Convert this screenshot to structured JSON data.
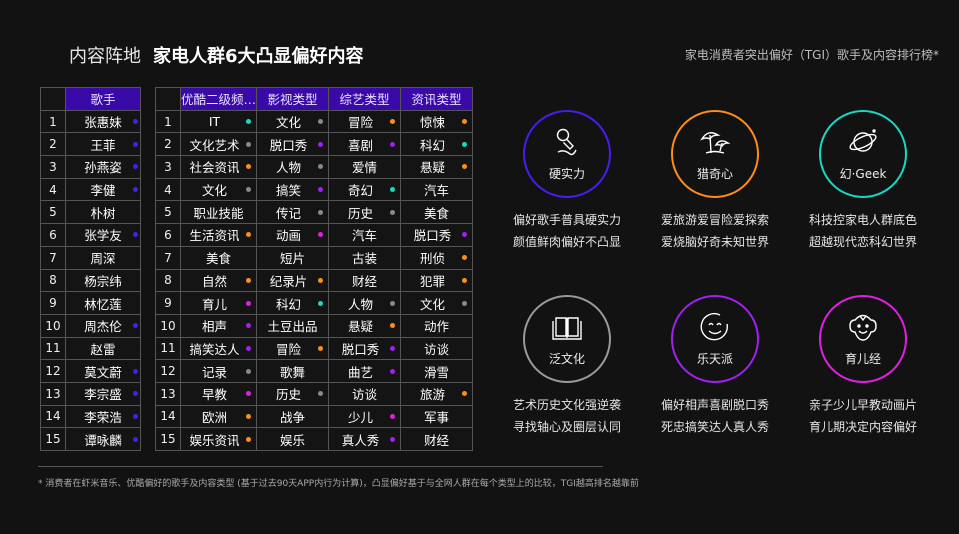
{
  "header": {
    "title_light": "内容阵地",
    "title_bold": "家电人群6大凸显偏好内容",
    "subtitle": "家电消费者突出偏好（TGI）歌手及内容排行榜*"
  },
  "colors": {
    "header_bg": "#3a0aa8",
    "blue": "#4a1cf0",
    "purple": "#a020f0",
    "magenta": "#e020e0",
    "orange": "#ff8c1a",
    "cyan": "#19d9c4",
    "gray": "#8a8a8a"
  },
  "singer_table": {
    "header": "歌手",
    "rows": [
      {
        "idx": "1",
        "name": "张惠妹",
        "dot": "blue"
      },
      {
        "idx": "2",
        "name": "王菲",
        "dot": "blue"
      },
      {
        "idx": "3",
        "name": "孙燕姿",
        "dot": "blue"
      },
      {
        "idx": "4",
        "name": "李健",
        "dot": "blue"
      },
      {
        "idx": "5",
        "name": "朴树",
        "dot": ""
      },
      {
        "idx": "6",
        "name": "张学友",
        "dot": "blue"
      },
      {
        "idx": "7",
        "name": "周深",
        "dot": ""
      },
      {
        "idx": "8",
        "name": "杨宗纬",
        "dot": ""
      },
      {
        "idx": "9",
        "name": "林忆莲",
        "dot": ""
      },
      {
        "idx": "10",
        "name": "周杰伦",
        "dot": "blue"
      },
      {
        "idx": "11",
        "name": "赵雷",
        "dot": ""
      },
      {
        "idx": "12",
        "name": "莫文蔚",
        "dot": "blue"
      },
      {
        "idx": "13",
        "name": "李宗盛",
        "dot": "blue"
      },
      {
        "idx": "14",
        "name": "李荣浩",
        "dot": "blue"
      },
      {
        "idx": "15",
        "name": "谭咏麟",
        "dot": "blue"
      }
    ]
  },
  "content_table": {
    "headers": [
      "优酷二级频…",
      "影视类型",
      "综艺类型",
      "资讯类型"
    ],
    "rows": [
      {
        "idx": "1",
        "cells": [
          {
            "t": "IT",
            "d": "cyan"
          },
          {
            "t": "文化",
            "d": "gray"
          },
          {
            "t": "冒险",
            "d": "orange"
          },
          {
            "t": "惊悚",
            "d": "orange"
          }
        ]
      },
      {
        "idx": "2",
        "cells": [
          {
            "t": "文化艺术",
            "d": "gray"
          },
          {
            "t": "脱口秀",
            "d": "purple"
          },
          {
            "t": "喜剧",
            "d": "purple"
          },
          {
            "t": "科幻",
            "d": "cyan"
          }
        ]
      },
      {
        "idx": "3",
        "cells": [
          {
            "t": "社会资讯",
            "d": "orange"
          },
          {
            "t": "人物",
            "d": "gray"
          },
          {
            "t": "爱情",
            "d": ""
          },
          {
            "t": "悬疑",
            "d": "orange"
          }
        ]
      },
      {
        "idx": "4",
        "cells": [
          {
            "t": "文化",
            "d": "gray"
          },
          {
            "t": "搞笑",
            "d": "purple"
          },
          {
            "t": "奇幻",
            "d": "cyan"
          },
          {
            "t": "汽车",
            "d": ""
          }
        ]
      },
      {
        "idx": "5",
        "cells": [
          {
            "t": "职业技能",
            "d": ""
          },
          {
            "t": "传记",
            "d": "gray"
          },
          {
            "t": "历史",
            "d": "gray"
          },
          {
            "t": "美食",
            "d": ""
          }
        ]
      },
      {
        "idx": "6",
        "cells": [
          {
            "t": "生活资讯",
            "d": "orange"
          },
          {
            "t": "动画",
            "d": "magenta"
          },
          {
            "t": "汽车",
            "d": ""
          },
          {
            "t": "脱口秀",
            "d": "purple"
          }
        ]
      },
      {
        "idx": "7",
        "cells": [
          {
            "t": "美食",
            "d": ""
          },
          {
            "t": "短片",
            "d": ""
          },
          {
            "t": "古装",
            "d": ""
          },
          {
            "t": "刑侦",
            "d": "orange"
          }
        ]
      },
      {
        "idx": "8",
        "cells": [
          {
            "t": "自然",
            "d": "orange"
          },
          {
            "t": "纪录片",
            "d": "orange"
          },
          {
            "t": "财经",
            "d": ""
          },
          {
            "t": "犯罪",
            "d": "orange"
          }
        ]
      },
      {
        "idx": "9",
        "cells": [
          {
            "t": "育儿",
            "d": "magenta"
          },
          {
            "t": "科幻",
            "d": "cyan"
          },
          {
            "t": "人物",
            "d": "gray"
          },
          {
            "t": "文化",
            "d": "gray"
          }
        ]
      },
      {
        "idx": "10",
        "cells": [
          {
            "t": "相声",
            "d": "purple"
          },
          {
            "t": "土豆出品",
            "d": ""
          },
          {
            "t": "悬疑",
            "d": "orange"
          },
          {
            "t": "动作",
            "d": ""
          }
        ]
      },
      {
        "idx": "11",
        "cells": [
          {
            "t": "搞笑达人",
            "d": "purple"
          },
          {
            "t": "冒险",
            "d": "orange"
          },
          {
            "t": "脱口秀",
            "d": "purple"
          },
          {
            "t": "访谈",
            "d": ""
          }
        ]
      },
      {
        "idx": "12",
        "cells": [
          {
            "t": "记录",
            "d": "gray"
          },
          {
            "t": "歌舞",
            "d": ""
          },
          {
            "t": "曲艺",
            "d": "purple"
          },
          {
            "t": "滑雪",
            "d": ""
          }
        ]
      },
      {
        "idx": "13",
        "cells": [
          {
            "t": "早教",
            "d": "magenta"
          },
          {
            "t": "历史",
            "d": "gray"
          },
          {
            "t": "访谈",
            "d": ""
          },
          {
            "t": "旅游",
            "d": "orange"
          }
        ]
      },
      {
        "idx": "14",
        "cells": [
          {
            "t": "欧洲",
            "d": "orange"
          },
          {
            "t": "战争",
            "d": ""
          },
          {
            "t": "少儿",
            "d": "magenta"
          },
          {
            "t": "军事",
            "d": ""
          }
        ]
      },
      {
        "idx": "15",
        "cells": [
          {
            "t": "娱乐资讯",
            "d": "orange"
          },
          {
            "t": "娱乐",
            "d": ""
          },
          {
            "t": "真人秀",
            "d": "purple"
          },
          {
            "t": "财经",
            "d": ""
          }
        ]
      }
    ]
  },
  "personas": [
    {
      "label": "硬实力",
      "icon": "microphone-icon",
      "color": "#4a1cf0",
      "lines": [
        "偏好歌手普具硬实力",
        "颜值鲜肉偏好不凸显"
      ]
    },
    {
      "label": "猎奇心",
      "icon": "beach-umbrella-icon",
      "color": "#ff8c1a",
      "lines": [
        "爱旅游爱冒险爱探索",
        "爱烧脑好奇未知世界"
      ]
    },
    {
      "label": "幻·Geek",
      "icon": "planet-icon",
      "color": "#19d9c4",
      "lines": [
        "科技控家电人群底色",
        "超越现代恋科幻世界"
      ]
    },
    {
      "label": "泛文化",
      "icon": "book-icon",
      "color": "#9a9a9a",
      "lines": [
        "艺术历史文化强逆袭",
        "寻找轴心及圈层认同"
      ]
    },
    {
      "label": "乐天派",
      "icon": "smile-icon",
      "color": "#a020f0",
      "lines": [
        "偏好相声喜剧脱口秀",
        "死忠搞笑达人真人秀"
      ]
    },
    {
      "label": "育儿经",
      "icon": "baby-face-icon",
      "color": "#e020e0",
      "lines": [
        "亲子少儿早教动画片",
        "育儿期决定内容偏好"
      ]
    }
  ],
  "footnote": "* 消费者在虾米音乐、优酷偏好的歌手及内容类型 (基于过去90天APP内行为计算)，凸显偏好基于与全网人群在每个类型上的比较，TGI越高排名越靠前"
}
